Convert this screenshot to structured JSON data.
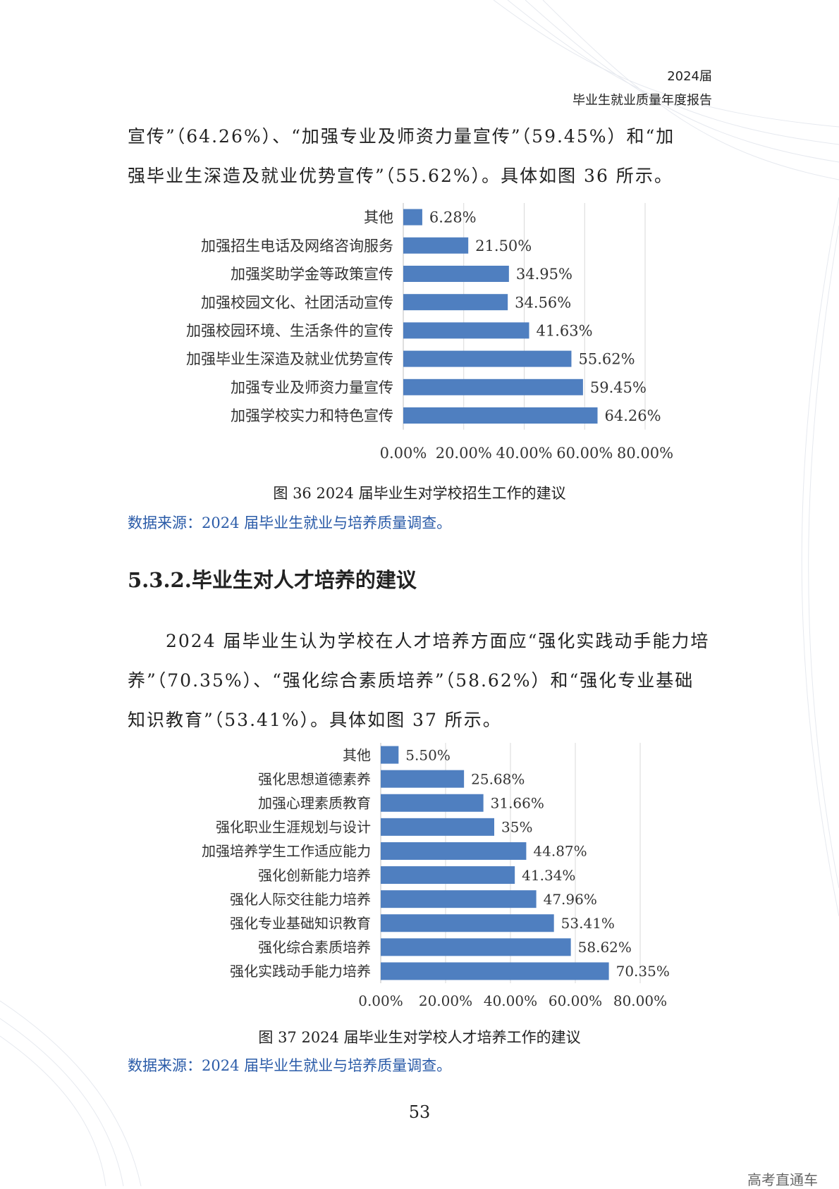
{
  "header": {
    "line1": "2024届",
    "line2": "毕业生就业质量年度报告"
  },
  "intro_para": {
    "line1": "宣传”（64.26%）、“加强专业及师资力量宣传”（59.45%）和“加",
    "line2": "强毕业生深造及就业优势宣传”（55.62%）。具体如图 36 所示。"
  },
  "figure36": {
    "caption": "图 36 2024 届毕业生对学校招生工作的建议",
    "source": "数据来源：2024 届毕业生就业与培养质量调查。"
  },
  "section_title": "5.3.2.毕业生对人才培养的建议",
  "para2": {
    "text": "2024 届毕业生认为学校在人才培养方面应“强化实践动手能力培养”（70.35%）、“强化综合素质培养”（58.62%）和“强化专业基础知识教育”（53.41%）。具体如图 37 所示。"
  },
  "figure37": {
    "caption": "图 37 2024 届毕业生对学校人才培养工作的建议",
    "source": "数据来源：2024 届毕业生就业与培养质量调查。"
  },
  "page_number": "53",
  "watermark": "高考直通车",
  "colors": {
    "bar": "#4f7fc0",
    "source_text": "#2a5ba8"
  },
  "chart_data": [
    {
      "type": "bar",
      "orientation": "horizontal",
      "categories": [
        "其他",
        "加强招生电话及网络咨询服务",
        "加强奖助学金等政策宣传",
        "加强校园文化、社团活动宣传",
        "加强校园环境、生活条件的宣传",
        "加强毕业生深造及就业优势宣传",
        "加强专业及师资力量宣传",
        "加强学校实力和特色宣传"
      ],
      "values": [
        6.28,
        21.5,
        34.95,
        34.56,
        41.63,
        55.62,
        59.45,
        64.26
      ],
      "value_labels": [
        "6.28%",
        "21.50%",
        "34.95%",
        "34.56%",
        "41.63%",
        "55.62%",
        "59.45%",
        "64.26%"
      ],
      "x_ticks": [
        "0.00%",
        "20.00%",
        "40.00%",
        "60.00%",
        "80.00%"
      ],
      "xlim": [
        0,
        80
      ],
      "grid": true,
      "legend": false
    },
    {
      "type": "bar",
      "orientation": "horizontal",
      "categories": [
        "其他",
        "强化思想道德素养",
        "加强心理素质教育",
        "强化职业生涯规划与设计",
        "加强培养学生工作适应能力",
        "强化创新能力培养",
        "强化人际交往能力培养",
        "强化专业基础知识教育",
        "强化综合素质培养",
        "强化实践动手能力培养"
      ],
      "values": [
        5.5,
        25.68,
        31.66,
        35,
        44.87,
        41.34,
        47.96,
        53.41,
        58.62,
        70.35
      ],
      "value_labels": [
        "5.50%",
        "25.68%",
        "31.66%",
        "35%",
        "44.87%",
        "41.34%",
        "47.96%",
        "53.41%",
        "58.62%",
        "70.35%"
      ],
      "x_ticks": [
        "0.00%",
        "20.00%",
        "40.00%",
        "60.00%",
        "80.00%"
      ],
      "xlim": [
        0,
        80
      ],
      "grid": true,
      "legend": false
    }
  ]
}
